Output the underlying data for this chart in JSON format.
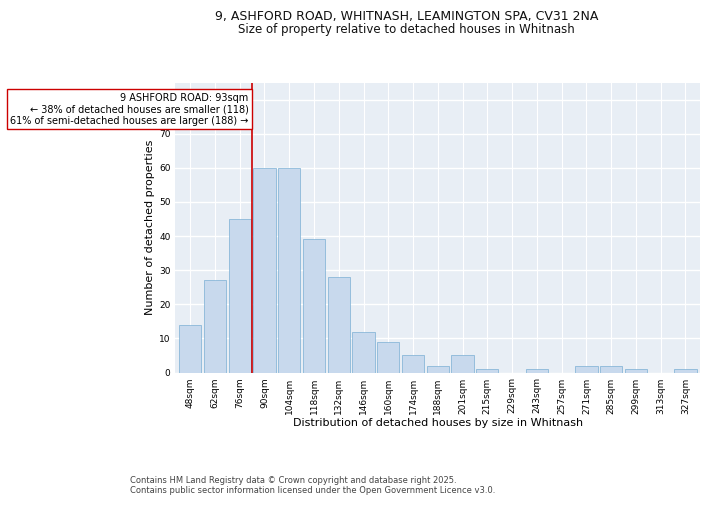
{
  "title_line1": "9, ASHFORD ROAD, WHITNASH, LEAMINGTON SPA, CV31 2NA",
  "title_line2": "Size of property relative to detached houses in Whitnash",
  "xlabel": "Distribution of detached houses by size in Whitnash",
  "ylabel": "Number of detached properties",
  "categories": [
    "48sqm",
    "62sqm",
    "76sqm",
    "90sqm",
    "104sqm",
    "118sqm",
    "132sqm",
    "146sqm",
    "160sqm",
    "174sqm",
    "188sqm",
    "201sqm",
    "215sqm",
    "229sqm",
    "243sqm",
    "257sqm",
    "271sqm",
    "285sqm",
    "299sqm",
    "313sqm",
    "327sqm"
  ],
  "values": [
    14,
    27,
    45,
    60,
    60,
    39,
    28,
    12,
    9,
    5,
    2,
    5,
    1,
    0,
    1,
    0,
    2,
    2,
    1,
    0,
    1
  ],
  "bar_color": "#c8d9ed",
  "bar_edge_color": "#7bafd4",
  "reference_line_index": 3,
  "reference_line_color": "#cc0000",
  "annotation_text": "9 ASHFORD ROAD: 93sqm\n← 38% of detached houses are smaller (118)\n61% of semi-detached houses are larger (188) →",
  "annotation_box_color": "#ffffff",
  "annotation_box_edge_color": "#cc0000",
  "ylim": [
    0,
    85
  ],
  "yticks": [
    0,
    10,
    20,
    30,
    40,
    50,
    60,
    70,
    80
  ],
  "background_color": "#e8eef5",
  "grid_color": "#ffffff",
  "footer_text": "Contains HM Land Registry data © Crown copyright and database right 2025.\nContains public sector information licensed under the Open Government Licence v3.0.",
  "title_fontsize": 9,
  "subtitle_fontsize": 8.5,
  "axis_label_fontsize": 8,
  "tick_fontsize": 6.5,
  "annotation_fontsize": 7,
  "footer_fontsize": 6
}
